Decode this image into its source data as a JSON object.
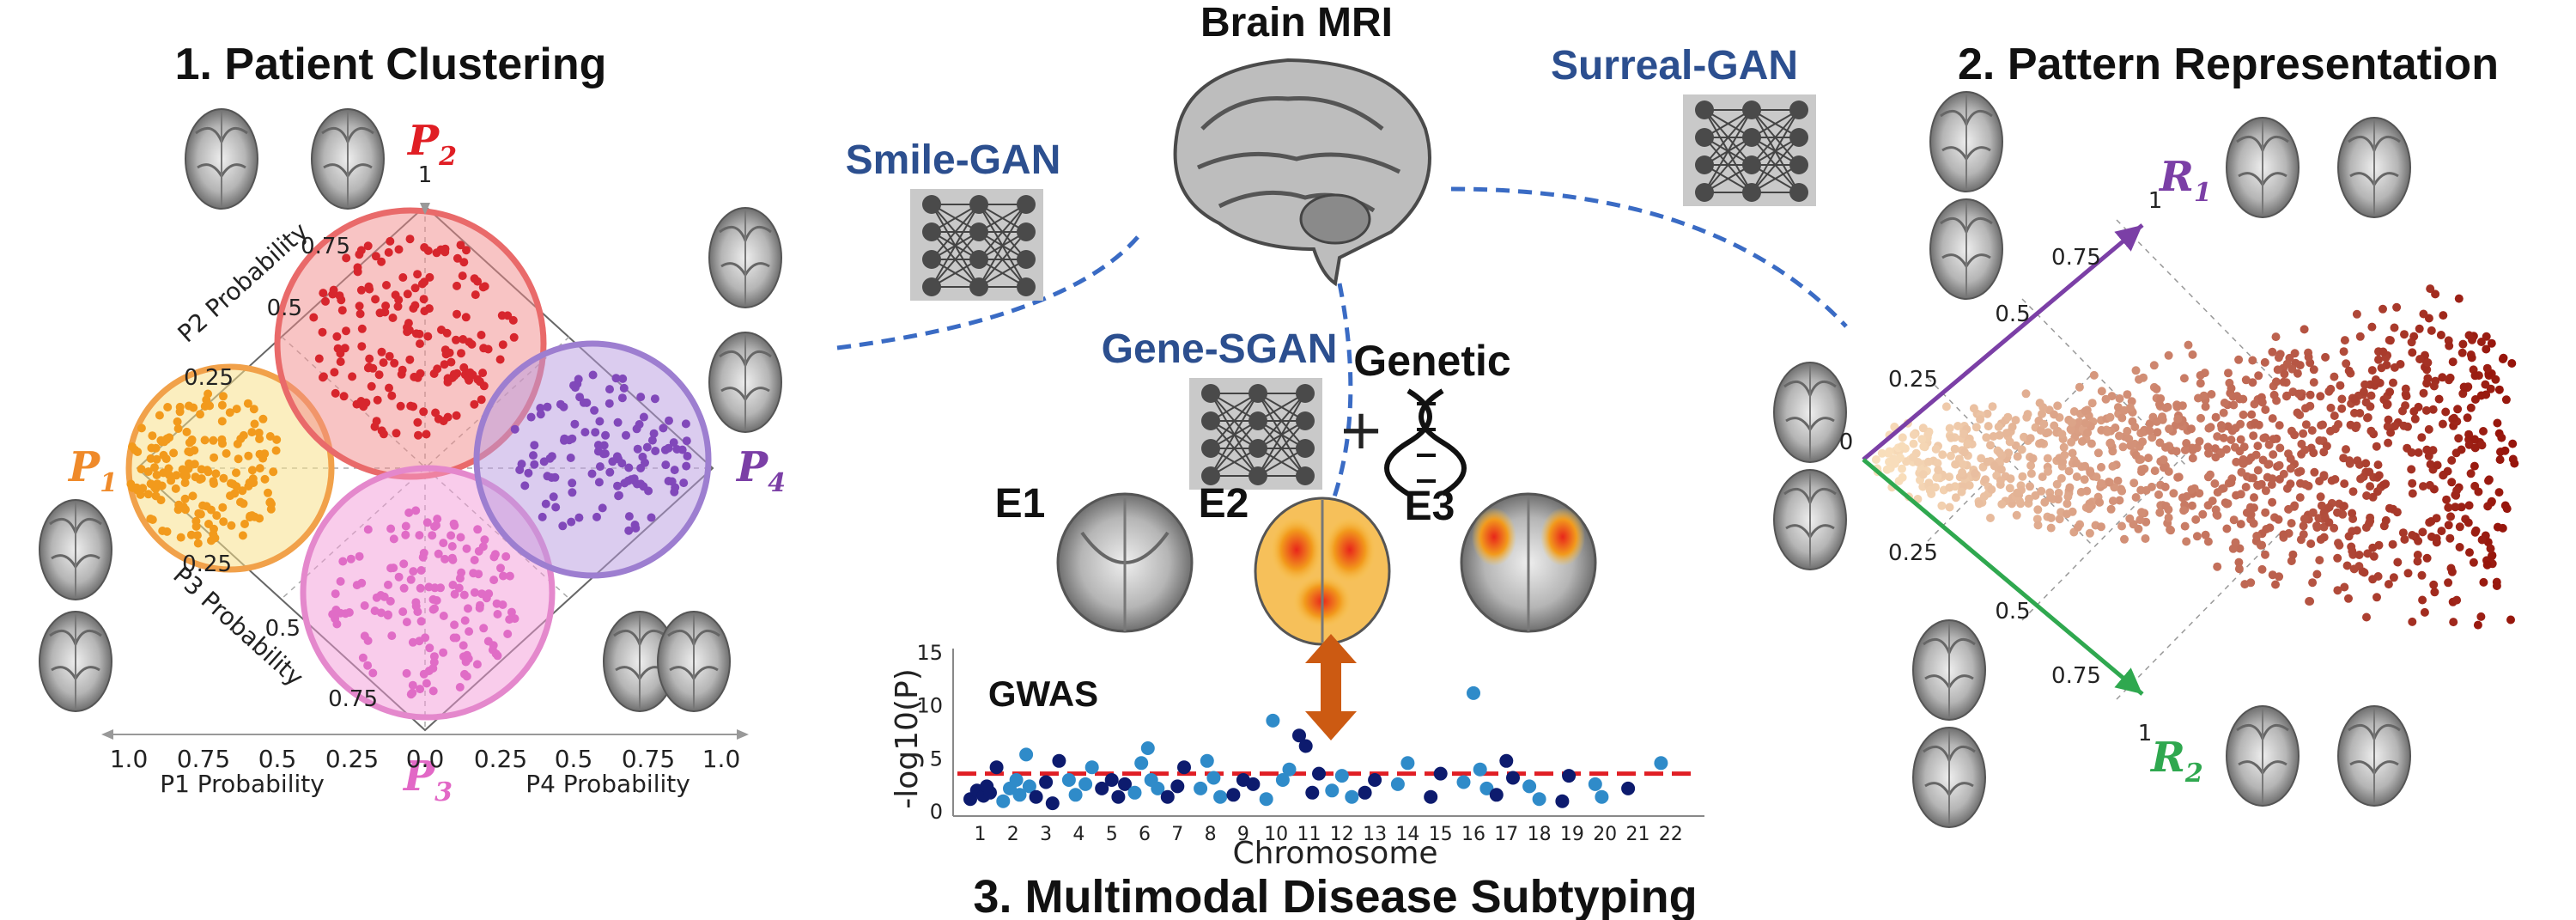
{
  "titles": {
    "patient_clustering": "1. Patient Clustering",
    "pattern_representation": "2. Pattern Representation",
    "multimodal_subtyping": "3. Multimodal Disease Subtyping",
    "brain_mri": "Brain MRI"
  },
  "networks": {
    "smile_gan": "Smile-GAN",
    "surreal_gan": "Surreal-GAN",
    "gene_sgan": "Gene-SGAN"
  },
  "genetic": {
    "label": "Genetic",
    "plus": "+"
  },
  "clustering": {
    "patterns": [
      {
        "base": "P",
        "sub": "1",
        "color": "#ef8a2a"
      },
      {
        "base": "P",
        "sub": "2",
        "color": "#e01e24"
      },
      {
        "base": "P",
        "sub": "3",
        "color": "#e268c6"
      },
      {
        "base": "P",
        "sub": "4",
        "color": "#7b3fa6"
      }
    ],
    "axis_labels": {
      "p1": "P1 Probability",
      "p2": "P2 Probability",
      "p3": "P3 Probability",
      "p4": "P4 Probability"
    },
    "bottom_ticks_left": [
      "1.0",
      "0.75",
      "0.5",
      "0.25",
      "0.0"
    ],
    "bottom_ticks_right": [
      "0.25",
      "0.5",
      "0.75",
      "1.0"
    ],
    "diag_ticks": [
      "0.25",
      "0.5",
      "0.75"
    ],
    "top_tick": "1"
  },
  "representation": {
    "r1": {
      "base": "R",
      "sub": "1",
      "color": "#7b3fa6"
    },
    "r2": {
      "base": "R",
      "sub": "2",
      "color": "#2fa84f"
    },
    "origin": "0",
    "axis_ticks": [
      "0.25",
      "0.5",
      "0.75"
    ],
    "end_tick": "1"
  },
  "subtypes": [
    {
      "label": "E1",
      "color": "#1f6fb5"
    },
    {
      "label": "E2",
      "color": "#f28c1c"
    },
    {
      "label": "E3",
      "color": "#4a7f2c"
    }
  ],
  "chart_data": {
    "type": "scatter",
    "title": "GWAS",
    "xlabel": "Chromosome",
    "ylabel": "-log10(P)",
    "ylim": [
      0,
      15
    ],
    "yticks": [
      "0",
      "5",
      "10",
      "15"
    ],
    "threshold": 3.6,
    "categories": [
      "1",
      "2",
      "3",
      "4",
      "5",
      "6",
      "7",
      "8",
      "9",
      "10",
      "11",
      "12",
      "13",
      "14",
      "15",
      "16",
      "17",
      "18",
      "19",
      "20",
      "21",
      "22"
    ],
    "series": [
      {
        "name": "chr1",
        "x": [
          1.0,
          1.2,
          1.4,
          1.5,
          1.6,
          1.8
        ],
        "values": [
          1.2,
          2.0,
          1.5,
          2.4,
          1.8,
          4.2
        ]
      },
      {
        "name": "chr2",
        "x": [
          2.0,
          2.2,
          2.4,
          2.5,
          2.7,
          2.8
        ],
        "values": [
          1.0,
          2.2,
          3.0,
          1.6,
          5.4,
          2.4
        ]
      },
      {
        "name": "chr3",
        "x": [
          3.0,
          3.3,
          3.5,
          3.7
        ],
        "values": [
          1.4,
          2.8,
          0.8,
          4.8
        ]
      },
      {
        "name": "chr4",
        "x": [
          4.0,
          4.2,
          4.5,
          4.7
        ],
        "values": [
          3.0,
          1.6,
          2.6,
          4.2
        ]
      },
      {
        "name": "chr5",
        "x": [
          5.0,
          5.3,
          5.5,
          5.7
        ],
        "values": [
          2.2,
          3.0,
          1.4,
          2.6
        ]
      },
      {
        "name": "chr6",
        "x": [
          6.0,
          6.2,
          6.4,
          6.5,
          6.7
        ],
        "values": [
          1.8,
          4.6,
          6.0,
          3.0,
          2.2
        ]
      },
      {
        "name": "chr7",
        "x": [
          7.0,
          7.3,
          7.5
        ],
        "values": [
          1.4,
          2.4,
          4.2
        ]
      },
      {
        "name": "chr8",
        "x": [
          8.0,
          8.2,
          8.4,
          8.6
        ],
        "values": [
          2.2,
          4.8,
          3.2,
          1.4
        ]
      },
      {
        "name": "chr9",
        "x": [
          9.0,
          9.3,
          9.6
        ],
        "values": [
          1.6,
          3.0,
          2.6
        ]
      },
      {
        "name": "chr10",
        "x": [
          10.0,
          10.2,
          10.5,
          10.7
        ],
        "values": [
          1.2,
          8.6,
          3.0,
          4.0
        ]
      },
      {
        "name": "chr11",
        "x": [
          11.0,
          11.2,
          11.4,
          11.6
        ],
        "values": [
          7.2,
          6.2,
          1.8,
          3.6
        ]
      },
      {
        "name": "chr12",
        "x": [
          12.0,
          12.3,
          12.6
        ],
        "values": [
          2.0,
          3.4,
          1.4
        ]
      },
      {
        "name": "chr13",
        "x": [
          13.0,
          13.3
        ],
        "values": [
          1.8,
          3.0
        ]
      },
      {
        "name": "chr14",
        "x": [
          14.0,
          14.3
        ],
        "values": [
          2.6,
          4.6
        ]
      },
      {
        "name": "chr15",
        "x": [
          15.0,
          15.3
        ],
        "values": [
          1.4,
          3.6
        ]
      },
      {
        "name": "chr16",
        "x": [
          16.0,
          16.3,
          16.5,
          16.7
        ],
        "values": [
          2.8,
          11.2,
          4.0,
          2.2
        ]
      },
      {
        "name": "chr17",
        "x": [
          17.0,
          17.3,
          17.5
        ],
        "values": [
          1.6,
          4.8,
          3.2
        ]
      },
      {
        "name": "chr18",
        "x": [
          18.0,
          18.3
        ],
        "values": [
          2.4,
          1.2
        ]
      },
      {
        "name": "chr19",
        "x": [
          19.0,
          19.2
        ],
        "values": [
          1.0,
          3.4
        ]
      },
      {
        "name": "chr20",
        "x": [
          20.0,
          20.2
        ],
        "values": [
          2.6,
          1.4
        ]
      },
      {
        "name": "chr21",
        "x": [
          21.0
        ],
        "values": [
          2.2
        ]
      },
      {
        "name": "chr22",
        "x": [
          22.0
        ],
        "values": [
          4.6
        ]
      }
    ],
    "colors": [
      "#0d1b6e",
      "#2f8bc9"
    ]
  }
}
